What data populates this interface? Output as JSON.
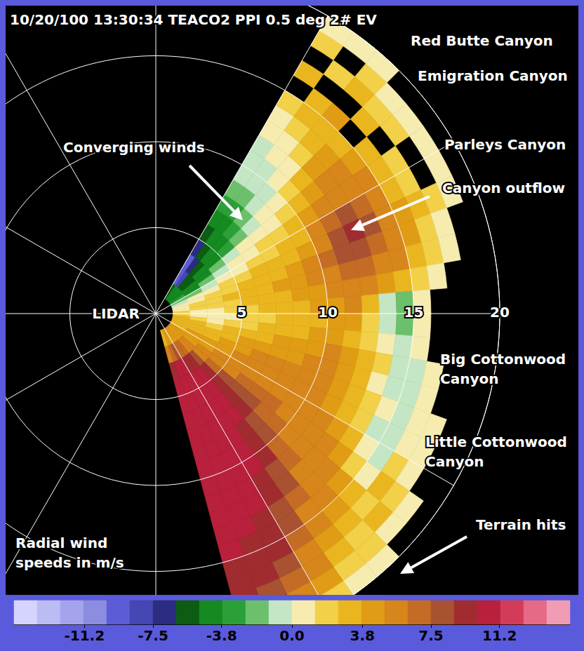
{
  "chart_data": {
    "type": "polar_heatmap",
    "header": "10/20/100 13:30:34 TEACO2 PPI 0.5 deg 2# EV",
    "center_label": "LIDAR",
    "angle_edges": [
      30,
      35,
      40,
      45,
      50,
      55,
      60,
      65,
      70,
      75,
      80,
      85,
      90,
      95,
      100,
      105,
      110,
      115,
      120,
      125,
      130,
      135,
      140,
      145,
      150,
      155,
      160,
      165
    ],
    "range_edges": [
      1,
      2,
      3,
      4,
      5,
      6,
      7,
      8,
      9,
      10,
      11,
      12,
      13,
      14,
      15,
      16,
      17,
      18,
      19,
      20
    ],
    "values": [
      [
        -6,
        -9,
        -9,
        -7,
        -6,
        -5,
        -3,
        -2,
        -1,
        -1,
        -1,
        0,
        1,
        2,
        null,
        3,
        null,
        2,
        1
      ],
      [
        -5,
        -8,
        -7,
        -6,
        -5,
        -4,
        -3,
        -2,
        -1,
        -1,
        0,
        1,
        2,
        3,
        3,
        null,
        2,
        null,
        1
      ],
      [
        -5,
        -6,
        -6,
        -5,
        -4,
        -3,
        -2,
        -1,
        -1,
        0,
        1,
        2,
        3,
        3,
        4,
        null,
        3,
        2,
        1
      ],
      [
        -5,
        -6,
        -5,
        -4,
        -3,
        -2,
        -1,
        0,
        1,
        2,
        3,
        4,
        4,
        3,
        null,
        3,
        2,
        1,
        null
      ],
      [
        -4,
        -5,
        -4,
        -2,
        -1,
        0,
        1,
        1,
        2,
        3,
        4,
        5,
        5,
        4,
        3,
        null,
        2,
        1,
        null
      ],
      [
        -3,
        -4,
        -2,
        -1,
        0,
        1,
        2,
        2,
        3,
        4,
        5,
        6,
        6,
        5,
        3,
        2,
        null,
        1,
        null
      ],
      [
        -2,
        -2,
        -1,
        0,
        1,
        2,
        2,
        3,
        3,
        5,
        7,
        8,
        7,
        5,
        3,
        2,
        null,
        1,
        null
      ],
      [
        -1,
        0,
        1,
        2,
        2,
        3,
        3,
        3,
        4,
        6,
        8,
        9,
        8,
        6,
        4,
        3,
        2,
        1,
        null
      ],
      [
        0,
        1,
        2,
        2,
        3,
        3,
        3,
        4,
        5,
        7,
        8,
        8,
        7,
        5,
        4,
        2,
        1,
        null,
        null
      ],
      [
        1,
        2,
        2,
        3,
        3,
        3,
        4,
        4,
        5,
        6,
        7,
        7,
        6,
        5,
        3,
        2,
        1,
        null,
        null
      ],
      [
        1,
        2,
        2,
        2,
        3,
        3,
        3,
        4,
        4,
        5,
        6,
        5,
        4,
        3,
        2,
        1,
        null,
        null,
        null
      ],
      [
        2,
        1,
        1,
        2,
        2,
        3,
        3,
        3,
        4,
        4,
        5,
        3,
        -1,
        -2,
        1,
        null,
        null,
        null,
        null
      ],
      [
        2,
        1,
        1,
        1,
        2,
        2,
        3,
        3,
        3,
        4,
        4,
        2,
        -1,
        -2,
        1,
        null,
        null,
        null,
        null
      ],
      [
        3,
        2,
        1,
        2,
        2,
        3,
        3,
        3,
        4,
        4,
        3,
        2,
        1,
        -1,
        1,
        null,
        null,
        null,
        null
      ],
      [
        3,
        3,
        2,
        3,
        3,
        3,
        4,
        4,
        4,
        5,
        4,
        3,
        2,
        -1,
        -1,
        1,
        null,
        null,
        null
      ],
      [
        3,
        3,
        3,
        3,
        4,
        4,
        4,
        4,
        5,
        5,
        4,
        3,
        1,
        -1,
        -1,
        1,
        null,
        null,
        null
      ],
      [
        3,
        3,
        3,
        4,
        4,
        5,
        5,
        5,
        5,
        5,
        4,
        3,
        2,
        0,
        -1,
        1,
        1,
        null,
        null
      ],
      [
        3,
        4,
        4,
        4,
        5,
        5,
        5,
        6,
        5,
        5,
        4,
        3,
        2,
        -1,
        -1,
        0,
        1,
        null,
        null
      ],
      [
        4,
        4,
        4,
        5,
        5,
        6,
        6,
        6,
        6,
        5,
        5,
        4,
        3,
        1,
        -1,
        2,
        1,
        null,
        null
      ],
      [
        4,
        4,
        5,
        5,
        6,
        7,
        7,
        7,
        6,
        6,
        5,
        5,
        4,
        2,
        1,
        3,
        2,
        1,
        null
      ],
      [
        4,
        5,
        6,
        7,
        8,
        8,
        8,
        7,
        7,
        6,
        6,
        5,
        5,
        4,
        3,
        2,
        3,
        1,
        null
      ],
      [
        4,
        6,
        8,
        9,
        9,
        9,
        9,
        8,
        8,
        7,
        7,
        6,
        6,
        5,
        4,
        3,
        2,
        2,
        1
      ],
      [
        4,
        7,
        9,
        10,
        10,
        10,
        10,
        9,
        9,
        9,
        8,
        8,
        7,
        6,
        5,
        4,
        3,
        2,
        1
      ],
      [
        4,
        7,
        9,
        10,
        10,
        11,
        10,
        10,
        10,
        10,
        9,
        9,
        8,
        8,
        7,
        6,
        5,
        4,
        2
      ],
      [
        4,
        8,
        10,
        10,
        11,
        11,
        10,
        10,
        10,
        10,
        10,
        10,
        9,
        9,
        9,
        8,
        7,
        6,
        null
      ],
      [
        4,
        7,
        10,
        10,
        11,
        10,
        10,
        10,
        11,
        10,
        10,
        10,
        10,
        9,
        9,
        9,
        8,
        null,
        null
      ],
      [
        3,
        6,
        9,
        10,
        10,
        10,
        10,
        10,
        10,
        10,
        11,
        10,
        10,
        10,
        9,
        9,
        9,
        null,
        null
      ]
    ],
    "rlim": [
      0,
      20
    ],
    "rticks": [
      5,
      10,
      15,
      20
    ],
    "angle_lim": [
      0,
      360
    ],
    "angle_gridlines": [
      0,
      30,
      60,
      90,
      120,
      150,
      180,
      210,
      240,
      270,
      300,
      330
    ],
    "grid": true,
    "colorbar": {
      "title": "Radial wind speeds in m/s",
      "lim": [
        -15,
        15
      ],
      "bounds": [
        -15,
        -13.75,
        -12.5,
        -11.25,
        -10,
        -8.75,
        -7.5,
        -6.25,
        -5,
        -3.75,
        -2.5,
        -1.25,
        0,
        1.25,
        2.5,
        3.75,
        5,
        6.25,
        7.5,
        8.75,
        10,
        11.25,
        12.5,
        13.75,
        15
      ],
      "colors": [
        "#d4d4fc",
        "#bcbcf4",
        "#a4a4ec",
        "#8c8ce0",
        "#5c5cd4",
        "#4646b4",
        "#2c2c80",
        "#0c5c14",
        "#148a20",
        "#2ca038",
        "#6cc06c",
        "#c4e6c4",
        "#f6ecb0",
        "#f2d048",
        "#eab620",
        "#e09c14",
        "#d6861a",
        "#c46c26",
        "#a85232",
        "#a02c30",
        "#b8203c",
        "#d23c58",
        "#e46a86",
        "#f09cb4"
      ],
      "ticks": [
        -11.2,
        -7.5,
        -3.8,
        {
          "value": 0,
          "label": "0.0"
        },
        3.8,
        7.5,
        11.2
      ]
    },
    "annotations": [
      "Red Butte Canyon",
      "Emigration Canyon",
      "Parleys Canyon",
      "Canyon outflow",
      "Converging winds",
      "Big Cottonwood Canyon",
      "Little Cottonwood Canyon",
      "Terrain hits"
    ]
  }
}
